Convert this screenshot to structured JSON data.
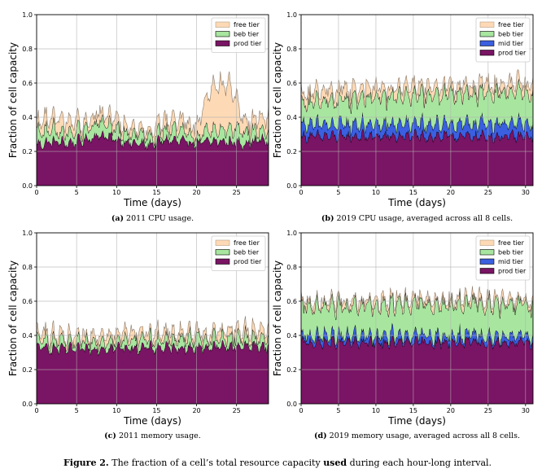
{
  "colors": {
    "free": "#fdd9b5",
    "beb": "#a8e6a0",
    "mid": "#3a5fe0",
    "prod": "#7a1464",
    "grid": "#b0b0b0"
  },
  "caption": {
    "label": "Figure 2.",
    "before": " The fraction of a cell’s total resource capacity ",
    "bold": "used",
    "after": " during each hour-long interval."
  },
  "chart_data": [
    {
      "type": "area",
      "stacked": true,
      "subcaption_tag": "(a)",
      "subcaption": "2011 CPU usage.",
      "xlabel": "Time (days)",
      "ylabel": "Fraction of cell capacity",
      "xlim": [
        0,
        29
      ],
      "ylim": [
        0,
        1.0
      ],
      "xticks": [
        0,
        5,
        10,
        15,
        20,
        25
      ],
      "yticks": [
        0.0,
        0.2,
        0.4,
        0.6,
        0.8,
        1.0
      ],
      "grid": true,
      "legend_position": "top-right",
      "legend": [
        "free tier",
        "beb tier",
        "prod tier"
      ],
      "series": [
        {
          "key": "prod",
          "points": [
            [
              0,
              0.24
            ],
            [
              2,
              0.26
            ],
            [
              4,
              0.25
            ],
            [
              6,
              0.27
            ],
            [
              8,
              0.3
            ],
            [
              10,
              0.27
            ],
            [
              12,
              0.25
            ],
            [
              14,
              0.24
            ],
            [
              16,
              0.27
            ],
            [
              18,
              0.26
            ],
            [
              20,
              0.25
            ],
            [
              22,
              0.26
            ],
            [
              24,
              0.26
            ],
            [
              26,
              0.25
            ],
            [
              28,
              0.27
            ],
            [
              29,
              0.26
            ]
          ]
        },
        {
          "key": "beb",
          "points": [
            [
              0,
              0.08
            ],
            [
              2,
              0.07
            ],
            [
              4,
              0.06
            ],
            [
              6,
              0.06
            ],
            [
              8,
              0.09
            ],
            [
              10,
              0.06
            ],
            [
              12,
              0.05
            ],
            [
              14,
              0.05
            ],
            [
              16,
              0.05
            ],
            [
              18,
              0.06
            ],
            [
              20,
              0.04
            ],
            [
              22,
              0.07
            ],
            [
              24,
              0.08
            ],
            [
              26,
              0.07
            ],
            [
              28,
              0.05
            ],
            [
              29,
              0.06
            ]
          ]
        },
        {
          "key": "free",
          "points": [
            [
              0,
              0.05
            ],
            [
              2,
              0.07
            ],
            [
              4,
              0.07
            ],
            [
              6,
              0.03
            ],
            [
              8,
              0.05
            ],
            [
              10,
              0.06
            ],
            [
              12,
              0.03
            ],
            [
              14,
              0.03
            ],
            [
              16,
              0.05
            ],
            [
              18,
              0.05
            ],
            [
              20,
              0.07
            ],
            [
              22,
              0.25
            ],
            [
              24,
              0.27
            ],
            [
              26,
              0.06
            ],
            [
              28,
              0.07
            ],
            [
              29,
              0.08
            ]
          ]
        }
      ]
    },
    {
      "type": "area",
      "stacked": true,
      "subcaption_tag": "(b)",
      "subcaption": "2019 CPU usage, averaged across all 8 cells.",
      "xlabel": "Time (days)",
      "ylabel": "Fraction of cell capacity",
      "xlim": [
        0,
        31
      ],
      "ylim": [
        0,
        1.0
      ],
      "xticks": [
        0,
        5,
        10,
        15,
        20,
        25,
        30
      ],
      "yticks": [
        0.0,
        0.2,
        0.4,
        0.6,
        0.8,
        1.0
      ],
      "grid": true,
      "legend_position": "top-right",
      "legend": [
        "free tier",
        "beb tier",
        "mid tier",
        "prod tier"
      ],
      "series": [
        {
          "key": "prod",
          "points": [
            [
              0,
              0.29
            ],
            [
              5,
              0.29
            ],
            [
              10,
              0.29
            ],
            [
              15,
              0.29
            ],
            [
              20,
              0.29
            ],
            [
              25,
              0.29
            ],
            [
              31,
              0.29
            ]
          ]
        },
        {
          "key": "mid",
          "points": [
            [
              0,
              0.07
            ],
            [
              5,
              0.07
            ],
            [
              10,
              0.07
            ],
            [
              15,
              0.07
            ],
            [
              20,
              0.07
            ],
            [
              25,
              0.08
            ],
            [
              31,
              0.07
            ]
          ]
        },
        {
          "key": "beb",
          "points": [
            [
              0,
              0.13
            ],
            [
              5,
              0.14
            ],
            [
              10,
              0.16
            ],
            [
              15,
              0.17
            ],
            [
              20,
              0.18
            ],
            [
              25,
              0.18
            ],
            [
              31,
              0.18
            ]
          ]
        },
        {
          "key": "free",
          "points": [
            [
              0,
              0.05
            ],
            [
              5,
              0.06
            ],
            [
              10,
              0.05
            ],
            [
              15,
              0.05
            ],
            [
              20,
              0.04
            ],
            [
              25,
              0.05
            ],
            [
              31,
              0.05
            ]
          ]
        }
      ]
    },
    {
      "type": "area",
      "stacked": true,
      "subcaption_tag": "(c)",
      "subcaption": "2011 memory usage.",
      "xlabel": "Time (days)",
      "ylabel": "Fraction of cell capacity",
      "xlim": [
        0,
        29
      ],
      "ylim": [
        0,
        1.0
      ],
      "xticks": [
        0,
        5,
        10,
        15,
        20,
        25
      ],
      "yticks": [
        0.0,
        0.2,
        0.4,
        0.6,
        0.8,
        1.0
      ],
      "grid": true,
      "legend_position": "top-right",
      "legend": [
        "free tier",
        "beb tier",
        "prod tier"
      ],
      "series": [
        {
          "key": "prod",
          "points": [
            [
              0,
              0.33
            ],
            [
              5,
              0.32
            ],
            [
              10,
              0.33
            ],
            [
              15,
              0.33
            ],
            [
              20,
              0.33
            ],
            [
              25,
              0.34
            ],
            [
              29,
              0.34
            ]
          ]
        },
        {
          "key": "beb",
          "points": [
            [
              0,
              0.05
            ],
            [
              5,
              0.04
            ],
            [
              10,
              0.04
            ],
            [
              15,
              0.05
            ],
            [
              20,
              0.05
            ],
            [
              25,
              0.05
            ],
            [
              29,
              0.05
            ]
          ]
        },
        {
          "key": "free",
          "points": [
            [
              0,
              0.04
            ],
            [
              5,
              0.03
            ],
            [
              10,
              0.04
            ],
            [
              15,
              0.04
            ],
            [
              20,
              0.03
            ],
            [
              25,
              0.04
            ],
            [
              29,
              0.04
            ]
          ]
        }
      ]
    },
    {
      "type": "area",
      "stacked": true,
      "subcaption_tag": "(d)",
      "subcaption": "2019 memory usage, averaged across all 8 cells.",
      "xlabel": "Time (days)",
      "ylabel": "Fraction of cell capacity",
      "xlim": [
        0,
        31
      ],
      "ylim": [
        0,
        1.0
      ],
      "xticks": [
        0,
        5,
        10,
        15,
        20,
        25,
        30
      ],
      "yticks": [
        0.0,
        0.2,
        0.4,
        0.6,
        0.8,
        1.0
      ],
      "grid": true,
      "legend_position": "top-right",
      "legend": [
        "free tier",
        "beb tier",
        "mid tier",
        "prod tier"
      ],
      "series": [
        {
          "key": "prod",
          "points": [
            [
              0,
              0.36
            ],
            [
              5,
              0.36
            ],
            [
              10,
              0.36
            ],
            [
              15,
              0.36
            ],
            [
              20,
              0.36
            ],
            [
              25,
              0.36
            ],
            [
              31,
              0.36
            ]
          ]
        },
        {
          "key": "mid",
          "points": [
            [
              0,
              0.04
            ],
            [
              5,
              0.04
            ],
            [
              10,
              0.04
            ],
            [
              15,
              0.04
            ],
            [
              20,
              0.04
            ],
            [
              25,
              0.04
            ],
            [
              31,
              0.04
            ]
          ]
        },
        {
          "key": "beb",
          "points": [
            [
              0,
              0.18
            ],
            [
              5,
              0.17
            ],
            [
              10,
              0.18
            ],
            [
              15,
              0.18
            ],
            [
              20,
              0.18
            ],
            [
              25,
              0.19
            ],
            [
              31,
              0.18
            ]
          ]
        },
        {
          "key": "free",
          "points": [
            [
              0,
              0.02
            ],
            [
              5,
              0.02
            ],
            [
              10,
              0.02
            ],
            [
              15,
              0.02
            ],
            [
              20,
              0.02
            ],
            [
              25,
              0.03
            ],
            [
              31,
              0.02
            ]
          ]
        }
      ]
    }
  ]
}
